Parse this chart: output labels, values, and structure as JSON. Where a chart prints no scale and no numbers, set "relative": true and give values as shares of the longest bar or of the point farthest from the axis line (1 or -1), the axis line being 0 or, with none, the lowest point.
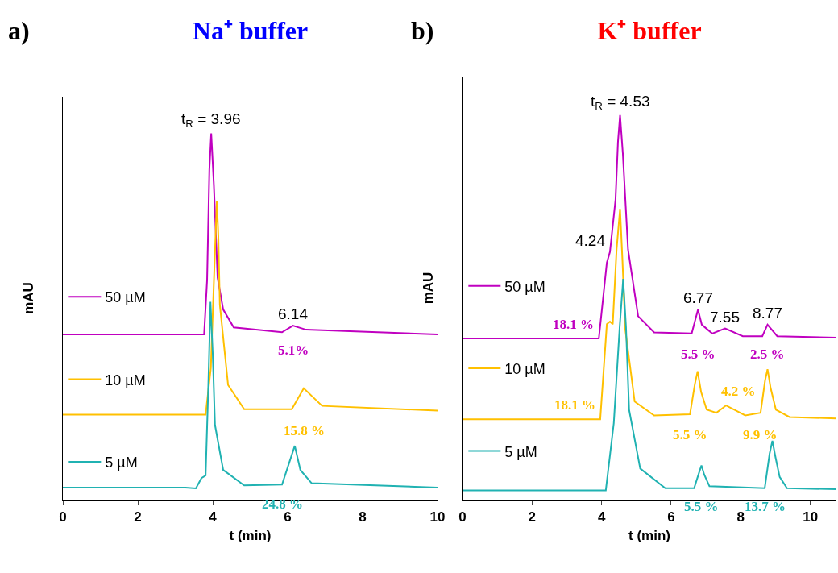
{
  "chart_data": [
    {
      "type": "line",
      "title": "Na⁺ buffer",
      "xlabel": "t (min)",
      "ylabel": "mAU",
      "relative": true,
      "tick_labels": "x",
      "legend": "left",
      "xlim": [
        0,
        10
      ],
      "xticks": [
        0,
        2,
        4,
        6,
        8,
        10
      ],
      "annotations": [
        "a)",
        {
          "text": "t$_{R}$ = 3.96",
          "x": 3.96,
          "y": 1
        },
        {
          "text": "6.14",
          "x": 6.14,
          "y": 0.475
        },
        {
          "text": "5.1%",
          "x": 6.14,
          "y": 0.475
        },
        {
          "text": "15.8 %",
          "x": 6.43,
          "y": 0.304
        },
        {
          "text": "24.8 %",
          "x": 5.85,
          "y": 0.041
        }
      ],
      "series": [
        {
          "name": "50 µM",
          "color": "#c000c0",
          "x": [
            0,
            3.77,
            3.85,
            3.91,
            3.96,
            4.03,
            4.13,
            4.28,
            4.56,
            5.85,
            6.14,
            6.49,
            10
          ],
          "values": [
            0.451,
            0.451,
            0.6,
            0.9,
            1,
            0.86,
            0.606,
            0.519,
            0.47,
            0.457,
            0.475,
            0.464,
            0.451
          ]
        },
        {
          "name": "10 µM",
          "color": "#ffc000",
          "x": [
            0,
            3.81,
            3.95,
            4.05,
            4.11,
            4.15,
            4.19,
            4.41,
            4.84,
            6.11,
            6.43,
            6.92,
            10
          ],
          "values": [
            0.232,
            0.232,
            0.36,
            0.65,
            0.816,
            0.72,
            0.532,
            0.313,
            0.247,
            0.247,
            0.304,
            0.256,
            0.243
          ]
        },
        {
          "name": "5 µM",
          "color": "#20b2b2",
          "x": [
            0,
            3.27,
            3.55,
            3.7,
            3.81,
            3.88,
            3.94,
            4.0,
            4.06,
            4.28,
            4.84,
            5.85,
            6.19,
            6.34,
            6.64,
            10
          ],
          "values": [
            0.033,
            0.033,
            0.031,
            0.059,
            0.066,
            0.3,
            0.54,
            0.4,
            0.204,
            0.081,
            0.039,
            0.041,
            0.147,
            0.081,
            0.045,
            0.033
          ]
        }
      ]
    },
    {
      "type": "line",
      "title": "K⁺ buffer",
      "xlabel": "t (min)",
      "ylabel": "mAU",
      "relative": true,
      "tick_labels": "x",
      "legend": "left",
      "xlim": [
        0,
        10.75
      ],
      "xticks": [
        0,
        2,
        4,
        6,
        8,
        10
      ],
      "annotations": [
        "b)",
        {
          "text": "t$_{R}$ = 4.53",
          "x": 4.53,
          "y": 1
        },
        {
          "text": "4.24",
          "x": 4.24,
          "y": 0.644
        },
        {
          "text": "6.77",
          "x": 6.77,
          "y": 0.494
        },
        {
          "text": "7.55",
          "x": 7.55,
          "y": 0.445
        },
        {
          "text": "8.77",
          "x": 8.77,
          "y": 0.455
        },
        {
          "text": "18.1 %",
          "x": 3.92,
          "y": 0.419
        },
        {
          "text": "5.5 %",
          "x": 6.77,
          "y": 0.494
        },
        {
          "text": "2.5 %",
          "x": 8.77,
          "y": 0.455
        },
        {
          "text": "18.1 %",
          "x": 3.96,
          "y": 0.209
        },
        {
          "text": "5.5 %",
          "x": 6.54,
          "y": 0.222
        },
        {
          "text": "4.2 %",
          "x": 7.58,
          "y": 0.245
        },
        {
          "text": "9.9 %",
          "x": 8.57,
          "y": 0.226
        },
        {
          "text": "5.5 %",
          "x": 6.87,
          "y": 0.089
        },
        {
          "text": "13.7 %",
          "x": 8.69,
          "y": 0.03
        }
      ],
      "series": [
        {
          "name": "50 µM",
          "color": "#c000c0",
          "x": [
            0,
            3.92,
            4.15,
            4.24,
            4.4,
            4.47,
            4.53,
            4.61,
            4.76,
            5.05,
            5.51,
            6.59,
            6.7,
            6.77,
            6.88,
            7.18,
            7.55,
            8.06,
            8.62,
            8.77,
            9.05,
            10.75
          ],
          "values": [
            0.419,
            0.419,
            0.616,
            0.644,
            0.78,
            0.93,
            1,
            0.9,
            0.65,
            0.477,
            0.435,
            0.432,
            0.47,
            0.494,
            0.455,
            0.432,
            0.445,
            0.425,
            0.425,
            0.455,
            0.425,
            0.421
          ]
        },
        {
          "name": "10 µM",
          "color": "#ffc000",
          "x": [
            0,
            3.96,
            4.15,
            4.24,
            4.32,
            4.43,
            4.53,
            4.6,
            4.68,
            4.95,
            5.51,
            6.54,
            6.68,
            6.76,
            6.86,
            7.02,
            7.3,
            7.58,
            8.13,
            8.57,
            8.7,
            8.77,
            8.86,
            9.01,
            9.4,
            10.75
          ],
          "values": [
            0.209,
            0.209,
            0.456,
            0.463,
            0.456,
            0.65,
            0.756,
            0.62,
            0.443,
            0.255,
            0.219,
            0.222,
            0.3,
            0.334,
            0.28,
            0.234,
            0.226,
            0.245,
            0.219,
            0.226,
            0.31,
            0.339,
            0.29,
            0.234,
            0.215,
            0.211
          ]
        },
        {
          "name": "5 µM",
          "color": "#20b2b2",
          "x": [
            0,
            4.12,
            4.35,
            4.52,
            4.62,
            4.7,
            4.79,
            5.11,
            5.83,
            6.66,
            6.8,
            6.87,
            6.95,
            7.1,
            8.69,
            8.83,
            8.91,
            9.0,
            9.12,
            9.33,
            10.75
          ],
          "values": [
            0.024,
            0.024,
            0.199,
            0.45,
            0.574,
            0.45,
            0.234,
            0.081,
            0.03,
            0.03,
            0.07,
            0.089,
            0.065,
            0.035,
            0.03,
            0.12,
            0.153,
            0.11,
            0.059,
            0.03,
            0.027
          ]
        }
      ]
    }
  ]
}
